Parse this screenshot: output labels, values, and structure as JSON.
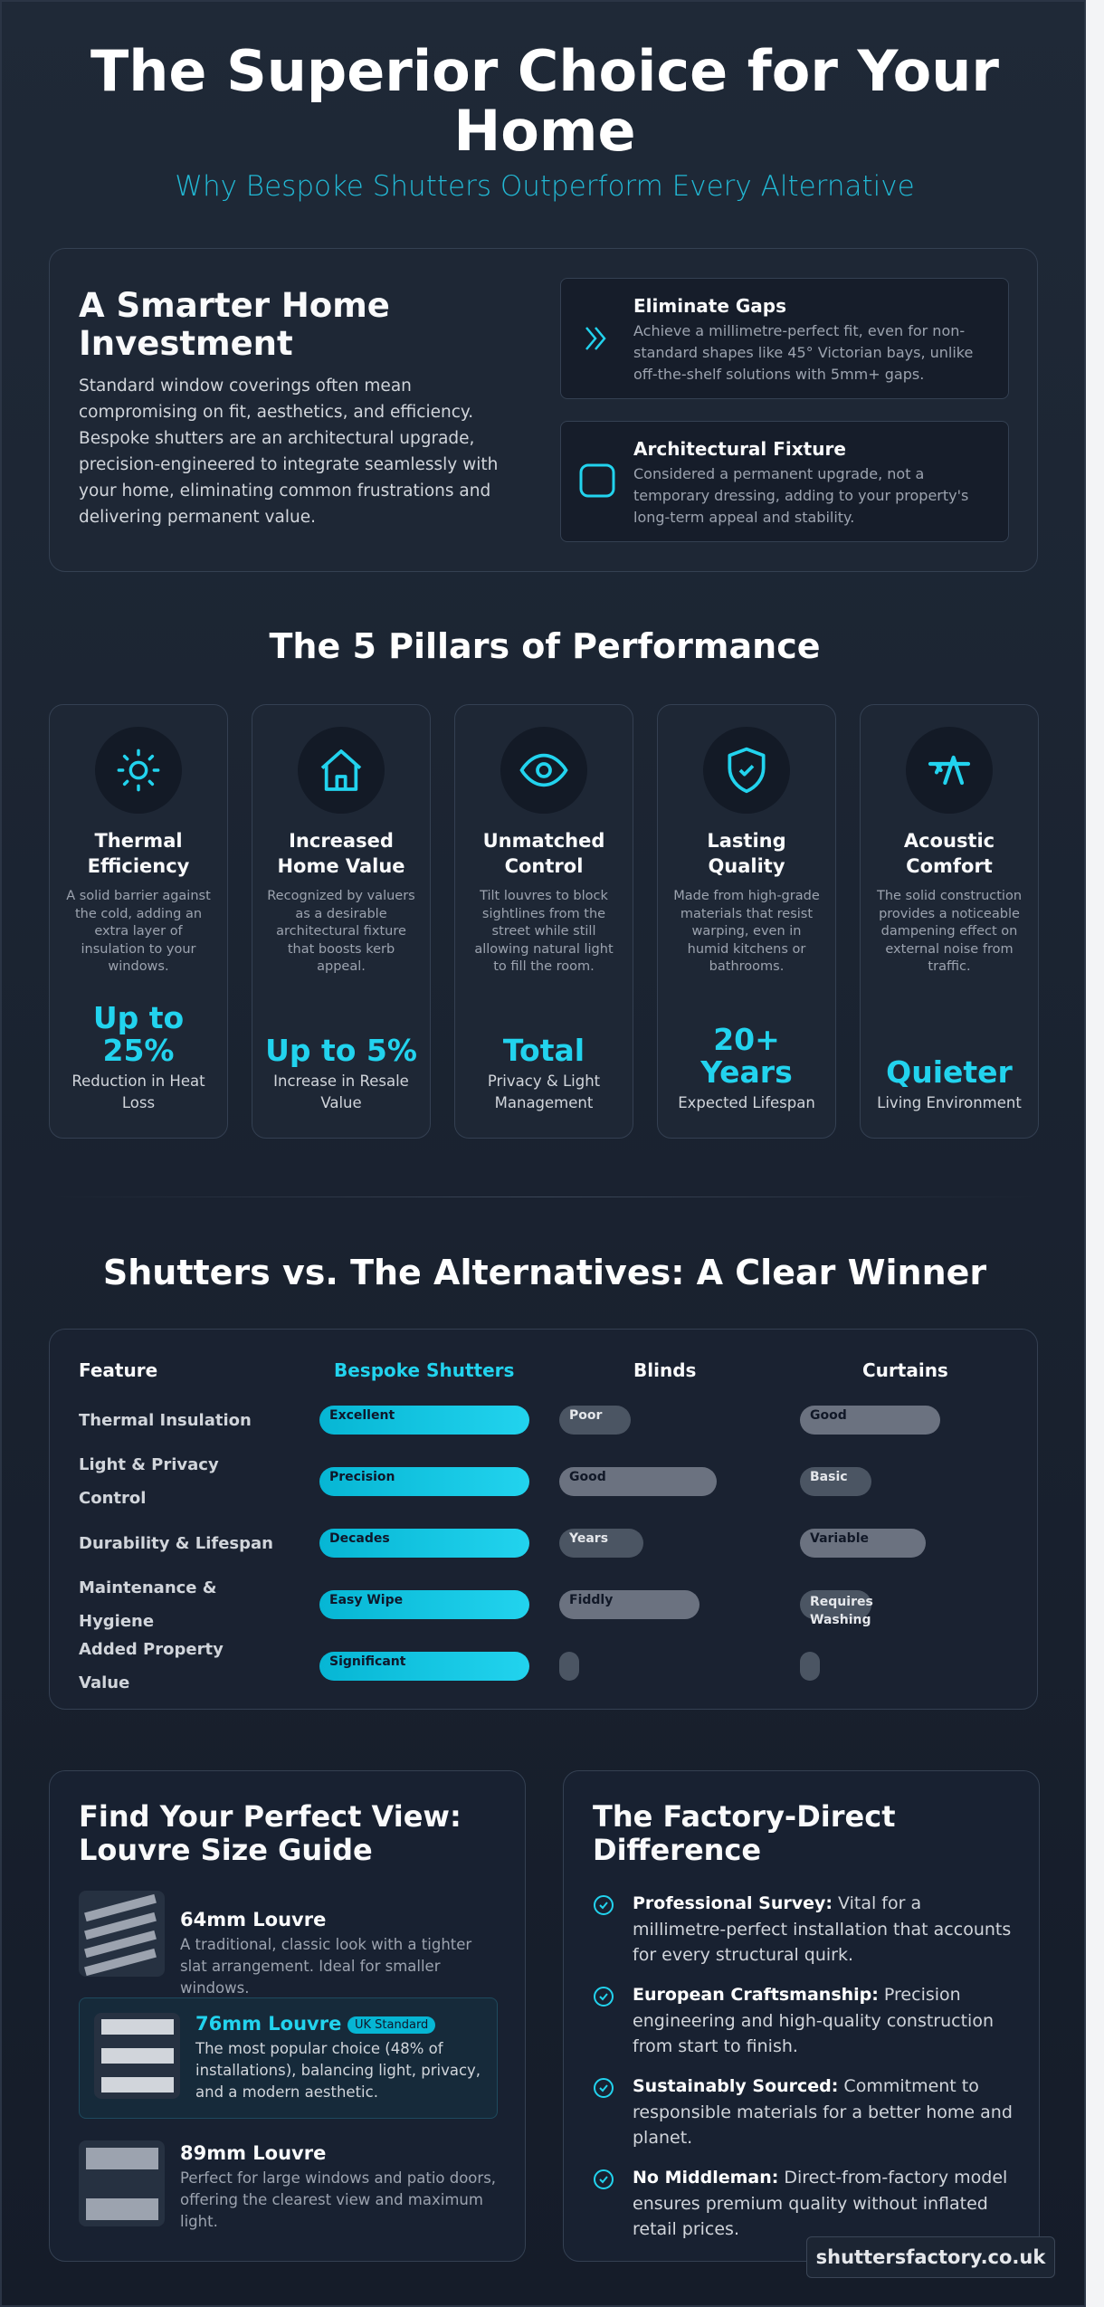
{
  "header": {
    "title": "The Superior Choice for Your Home",
    "subtitle": "Why Bespoke Shutters Outperform Every Alternative"
  },
  "colors": {
    "accent": "#22d3ee",
    "background": "#1f2937",
    "muted": "#6b7280"
  },
  "investment": {
    "title": "A Smarter Home Investment",
    "body": "Standard window coverings often mean compromising on fit, aesthetics, and efficiency. Bespoke shutters are an architectural upgrade, precision-engineered to integrate seamlessly with your home, eliminating common frustrations and delivering permanent value.",
    "features": [
      {
        "icon": "double-chevron-right-icon",
        "title": "Eliminate Gaps",
        "text": "Achieve a millimetre-perfect fit, even for non-standard shapes like 45° Victorian bays, unlike off-the-shelf solutions with 5mm+ gaps."
      },
      {
        "icon": "rounded-square-icon",
        "title": "Architectural Fixture",
        "text": "Considered a permanent upgrade, not a temporary dressing, adding to your property's long-term appeal and stability."
      }
    ]
  },
  "pillars": {
    "title": "The 5 Pillars of Performance",
    "items": [
      {
        "icon": "sun-icon",
        "title": "Thermal Efficiency",
        "desc": "A solid barrier against the cold, adding an extra layer of insulation to your windows.",
        "stat": "Up to 25%",
        "stat_label": "Reduction in Heat Loss"
      },
      {
        "icon": "home-icon",
        "title": "Increased Home Value",
        "desc": "Recognized by valuers as a desirable architectural fixture that boosts kerb appeal.",
        "stat": "Up to 5%",
        "stat_label": "Increase in Resale Value"
      },
      {
        "icon": "eye-icon",
        "title": "Unmatched Control",
        "desc": "Tilt louvres to block sightlines from the street while still allowing natural light to fill the room.",
        "stat": "Total",
        "stat_label": "Privacy & Light Management"
      },
      {
        "icon": "shield-check-icon",
        "title": "Lasting Quality",
        "desc": "Made from high-grade materials that resist warping, even in humid kitchens or bathrooms.",
        "stat": "20+ Years",
        "stat_label": "Expected Lifespan"
      },
      {
        "icon": "acoustic-icon",
        "title": "Acoustic Comfort",
        "desc": "The solid construction provides a noticeable dampening effect on external noise from traffic.",
        "stat": "Quieter",
        "stat_label": "Living Environment"
      }
    ]
  },
  "comparison": {
    "title": "Shutters vs. The Alternatives: A Clear Winner",
    "headers": [
      "Feature",
      "Bespoke Shutters",
      "Blinds",
      "Curtains"
    ],
    "rows": [
      {
        "feature": "Thermal Insulation",
        "shutters": {
          "label": "Excellent",
          "level": 100
        },
        "blinds": {
          "label": "Poor",
          "level": 34
        },
        "curtains": {
          "label": "Good",
          "level": 67
        }
      },
      {
        "feature": "Light & Privacy Control",
        "shutters": {
          "label": "Precision",
          "level": 100
        },
        "blinds": {
          "label": "Good",
          "level": 75
        },
        "curtains": {
          "label": "Basic",
          "level": 34
        }
      },
      {
        "feature": "Durability & Lifespan",
        "shutters": {
          "label": "Decades",
          "level": 100
        },
        "blinds": {
          "label": "Years",
          "level": 40
        },
        "curtains": {
          "label": "Variable",
          "level": 60
        }
      },
      {
        "feature": "Maintenance & Hygiene",
        "shutters": {
          "label": "Easy Wipe",
          "level": 100
        },
        "blinds": {
          "label": "Fiddly",
          "level": 67
        },
        "curtains": {
          "label": "Requires Washing",
          "level": 34
        }
      },
      {
        "feature": "Added Property Value",
        "shutters": {
          "label": "Significant",
          "level": 100
        },
        "blinds": {
          "label": "",
          "level": 8
        },
        "curtains": {
          "label": "",
          "level": 8
        }
      }
    ]
  },
  "louvres": {
    "title": "Find Your Perfect View: Louvre Size Guide",
    "items": [
      {
        "title": "64mm Louvre",
        "text": "A traditional, classic look with a tighter slat arrangement. Ideal for smaller windows."
      },
      {
        "title": "76mm Louvre",
        "badge": "UK Standard",
        "text": "The most popular choice (48% of installations), balancing light, privacy, and a modern aesthetic."
      },
      {
        "title": "89mm Louvre",
        "text": "Perfect for large windows and patio doors, offering the clearest view and maximum light."
      }
    ]
  },
  "factory": {
    "title": "The Factory-Direct Difference",
    "items": [
      {
        "bold": "Professional Survey:",
        "text": " Vital for a millimetre-perfect installation that accounts for every structural quirk."
      },
      {
        "bold": "European Craftsmanship:",
        "text": " Precision engineering and high-quality construction from start to finish."
      },
      {
        "bold": "Sustainably Sourced:",
        "text": " Commitment to responsible materials for a better home and planet."
      },
      {
        "bold": "No Middleman:",
        "text": " Direct-from-factory model ensures premium quality without inflated retail prices."
      }
    ]
  },
  "footer": {
    "site": "shuttersfactory.co.uk"
  }
}
